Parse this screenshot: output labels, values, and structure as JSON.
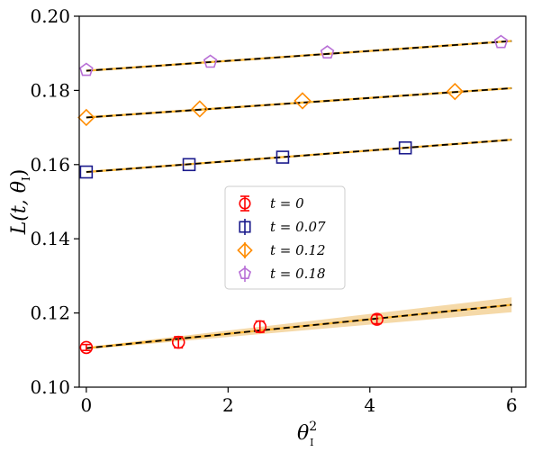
{
  "chart_data": {
    "type": "scatter",
    "xlabel": "θ",
    "xlabel_sup": "2",
    "xlabel_sub": "I",
    "ylabel": "L(t, θ",
    "ylabel_sub": "I",
    "ylabel_close": ")",
    "xlim": [
      -0.1,
      6.2
    ],
    "ylim": [
      0.1,
      0.2
    ],
    "x_ticks": [
      0,
      2,
      4,
      6
    ],
    "x_tick_labels": [
      "0",
      "2",
      "4",
      "6"
    ],
    "y_ticks": [
      0.1,
      0.12,
      0.14,
      0.16,
      0.18,
      0.2
    ],
    "y_tick_labels": [
      "0.10",
      "0.12",
      "0.14",
      "0.16",
      "0.18",
      "0.20"
    ],
    "legend_position": "center-left",
    "series": [
      {
        "name": "t = 0",
        "marker": "circle",
        "color": "#ff0000",
        "x": [
          0.0,
          1.3,
          2.45,
          4.1
        ],
        "y": [
          0.1107,
          0.1121,
          0.1163,
          0.1183
        ],
        "yerr": [
          0.0008,
          0.0015,
          0.0015,
          0.0012
        ],
        "fit": [
          [
            0.0,
            0.1105
          ],
          [
            6.0,
            0.1222
          ]
        ],
        "band": [
          [
            0.0,
            0.1102,
            0.1108
          ],
          [
            6.0,
            0.1202,
            0.1242
          ]
        ]
      },
      {
        "name": "t = 0.07",
        "marker": "square",
        "color": "#1a1a8c",
        "x": [
          0.0,
          1.45,
          2.77,
          4.5
        ],
        "y": [
          0.158,
          0.16,
          0.162,
          0.1645
        ],
        "yerr": [
          0.0,
          0.0,
          0.0,
          0.0
        ],
        "fit": [
          [
            0.0,
            0.158
          ],
          [
            6.0,
            0.1667
          ]
        ]
      },
      {
        "name": "t = 0.12",
        "marker": "diamond",
        "color": "#ff8c00",
        "x": [
          0.0,
          1.6,
          3.05,
          5.2
        ],
        "y": [
          0.1727,
          0.175,
          0.1772,
          0.1797
        ],
        "yerr": [
          0.0,
          0.0,
          0.0,
          0.0
        ],
        "fit": [
          [
            0.0,
            0.1727
          ],
          [
            6.0,
            0.1806
          ]
        ]
      },
      {
        "name": "t = 0.18",
        "marker": "pentagon",
        "color": "#b86fd6",
        "x": [
          0.0,
          1.75,
          3.4,
          5.85
        ],
        "y": [
          0.1855,
          0.1877,
          0.1902,
          0.193
        ],
        "yerr": [
          0.0,
          0.0,
          0.0,
          0.0
        ],
        "fit": [
          [
            0.0,
            0.1853
          ],
          [
            6.0,
            0.1933
          ]
        ]
      }
    ],
    "fit_line_colors": [
      "#ffb732",
      "#000000"
    ],
    "band_color": "#f5d9a8"
  }
}
